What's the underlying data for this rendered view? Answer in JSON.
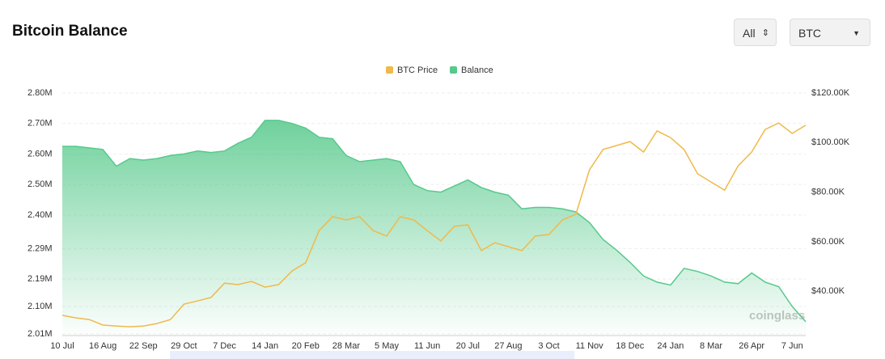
{
  "header": {
    "title": "Bitcoin Balance",
    "range_select": "All",
    "coin_select": "BTC"
  },
  "watermark": "coinglass",
  "chart_data": {
    "type": "line",
    "categories": [
      "10 Jul",
      null,
      null,
      "16 Aug",
      null,
      null,
      "22 Sep",
      null,
      null,
      "29 Oct",
      null,
      null,
      "7 Dec",
      null,
      null,
      "14 Jan",
      null,
      null,
      "20 Feb",
      null,
      null,
      "28 Mar",
      null,
      null,
      "5 May",
      null,
      null,
      "11 Jun",
      null,
      null,
      "20 Jul",
      null,
      null,
      "27 Aug",
      null,
      null,
      "3 Oct",
      null,
      null,
      "11 Nov",
      null,
      null,
      "18 Dec",
      null,
      null,
      "24 Jan",
      null,
      null,
      "8 Mar",
      null,
      null,
      "26 Apr",
      null,
      null,
      "7 Jun",
      null
    ],
    "series": [
      {
        "name": "BTC Price",
        "color": "#f0b94a",
        "axis": "y2",
        "values": [
          30300,
          29300,
          28600,
          26400,
          26000,
          25700,
          26000,
          27000,
          28600,
          34800,
          36100,
          37500,
          43300,
          42700,
          44000,
          41700,
          42700,
          48200,
          51500,
          64500,
          70100,
          68800,
          70100,
          64500,
          62300,
          70100,
          68800,
          64500,
          60300,
          66200,
          66800,
          56400,
          59600,
          58000,
          56400,
          62300,
          62900,
          68800,
          71100,
          89000,
          97200,
          98800,
          100400,
          96200,
          104700,
          102000,
          97200,
          87400,
          84100,
          80800,
          90600,
          96200,
          105300,
          107900,
          103700,
          107000
        ]
      },
      {
        "name": "Balance",
        "color": "#56c98b",
        "axis": "y",
        "values": [
          2625000,
          2625000,
          2620000,
          2615000,
          2560000,
          2585000,
          2580000,
          2585000,
          2595000,
          2600000,
          2610000,
          2605000,
          2610000,
          2635000,
          2655000,
          2710000,
          2710000,
          2700000,
          2685000,
          2655000,
          2650000,
          2595000,
          2575000,
          2580000,
          2585000,
          2575000,
          2500000,
          2480000,
          2475000,
          2495000,
          2515000,
          2490000,
          2475000,
          2465000,
          2420000,
          2425000,
          2425000,
          2420000,
          2410000,
          2375000,
          2320000,
          2285000,
          2245000,
          2200000,
          2180000,
          2170000,
          2225000,
          2215000,
          2200000,
          2180000,
          2175000,
          2210000,
          2180000,
          2165000,
          2100000,
          2050000
        ]
      }
    ],
    "ylim": [
      2010000,
      2800000
    ],
    "yticks": [
      {
        "value": 2800000,
        "label": "2.80M"
      },
      {
        "value": 2700000,
        "label": "2.70M"
      },
      {
        "value": 2600000,
        "label": "2.60M"
      },
      {
        "value": 2500000,
        "label": "2.50M"
      },
      {
        "value": 2400000,
        "label": "2.40M"
      },
      {
        "value": 2290000,
        "label": "2.29M"
      },
      {
        "value": 2190000,
        "label": "2.19M"
      },
      {
        "value": 2100000,
        "label": "2.10M"
      },
      {
        "value": 2010000,
        "label": "2.01M"
      }
    ],
    "y2lim": [
      22800,
      120000
    ],
    "y2ticks": [
      {
        "value": 120000,
        "label": "$120.00K"
      },
      {
        "value": 100000,
        "label": "$100.00K"
      },
      {
        "value": 80000,
        "label": "$80.00K"
      },
      {
        "value": 60000,
        "label": "$60.00K"
      },
      {
        "value": 40000,
        "label": "$40.00K"
      }
    ],
    "grid": true,
    "legend": "top"
  }
}
